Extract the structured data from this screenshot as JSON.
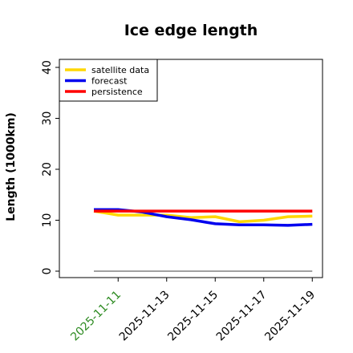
{
  "chart_data": {
    "type": "line",
    "title": "Ice edge length",
    "ylabel": "Length (1000km)",
    "xlabel": "",
    "ylim": [
      -1,
      41
    ],
    "yticks": [
      0,
      10,
      20,
      30,
      40
    ],
    "x": [
      "2025-11-10",
      "2025-11-11",
      "2025-11-12",
      "2025-11-13",
      "2025-11-14",
      "2025-11-15",
      "2025-11-16",
      "2025-11-17",
      "2025-11-18",
      "2025-11-19"
    ],
    "xticks": [
      "2025-11-11",
      "2025-11-13",
      "2025-11-15",
      "2025-11-17",
      "2025-11-19"
    ],
    "highlight_tick": "2025-11-11",
    "highlight_color": "#2e8b22",
    "legend_position": "top-left",
    "grid": false,
    "series": [
      {
        "name": "satellite data",
        "color": "#ffd700",
        "values": [
          11.8,
          11.0,
          11.0,
          11.0,
          10.5,
          10.7,
          9.7,
          10.0,
          10.7,
          10.8
        ]
      },
      {
        "name": "forecast",
        "color": "#0000ee",
        "values": [
          12.1,
          12.1,
          11.6,
          10.7,
          10.1,
          9.3,
          9.1,
          9.1,
          9.0,
          9.2
        ]
      },
      {
        "name": "persistence",
        "color": "#ff0000",
        "values": [
          11.8,
          11.8,
          11.8,
          11.8,
          11.8,
          11.8,
          11.8,
          11.8,
          11.8,
          11.8
        ]
      }
    ],
    "reference_line": {
      "value": 0,
      "color": "#808080",
      "x_from": "2025-11-10",
      "x_to": "2025-11-19"
    }
  }
}
